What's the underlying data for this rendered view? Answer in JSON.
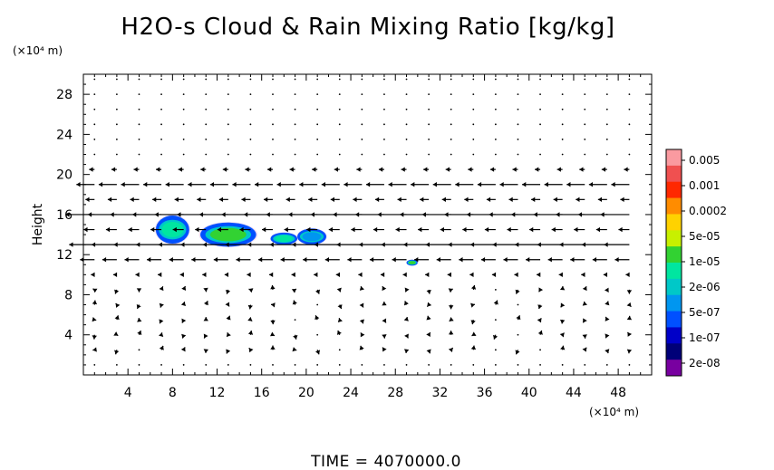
{
  "chart_data": {
    "type": "heatmap",
    "title": "H2O-s Cloud & Rain Mixing Ratio [kg/kg]",
    "ylabel": "Height",
    "xunit": "(×10⁴ m)",
    "yunit": "(×10⁴ m)",
    "footer": "TIME  =  4070000.0",
    "xlim": [
      0,
      51
    ],
    "ylim": [
      0,
      30
    ],
    "xticks": [
      "4",
      "8",
      "12",
      "16",
      "20",
      "24",
      "28",
      "32",
      "36",
      "40",
      "44",
      "48"
    ],
    "yticks": [
      "4",
      "8",
      "12",
      "16",
      "20",
      "24",
      "28"
    ],
    "colorbar": {
      "labels": [
        "0.005",
        "0.001",
        "0.0002",
        "5e-05",
        "1e-05",
        "2e-06",
        "5e-07",
        "1e-07",
        "2e-08"
      ],
      "colors": [
        "#fa9aa0",
        "#f05050",
        "#ff2800",
        "#ff8c00",
        "#ffd200",
        "#c8f000",
        "#32d232",
        "#00e6a0",
        "#00c8c8",
        "#0096f0",
        "#0050ff",
        "#0000c8",
        "#000078",
        "#7800a0"
      ]
    },
    "cloud_regions": [
      {
        "x": 8,
        "y": 14.5,
        "dx": 1.5,
        "dy": 1.4,
        "level": "2e-06"
      },
      {
        "x": 13,
        "y": 14,
        "dx": 2.5,
        "dy": 1.2,
        "level": "1e-05"
      },
      {
        "x": 18,
        "y": 13.6,
        "dx": 1.2,
        "dy": 0.6,
        "level": "2e-06"
      },
      {
        "x": 20.5,
        "y": 13.8,
        "dx": 1.3,
        "dy": 0.8,
        "level": "5e-07"
      },
      {
        "x": 29.5,
        "y": 11.2,
        "dx": 0.5,
        "dy": 0.3,
        "level": "1e-05"
      }
    ]
  }
}
